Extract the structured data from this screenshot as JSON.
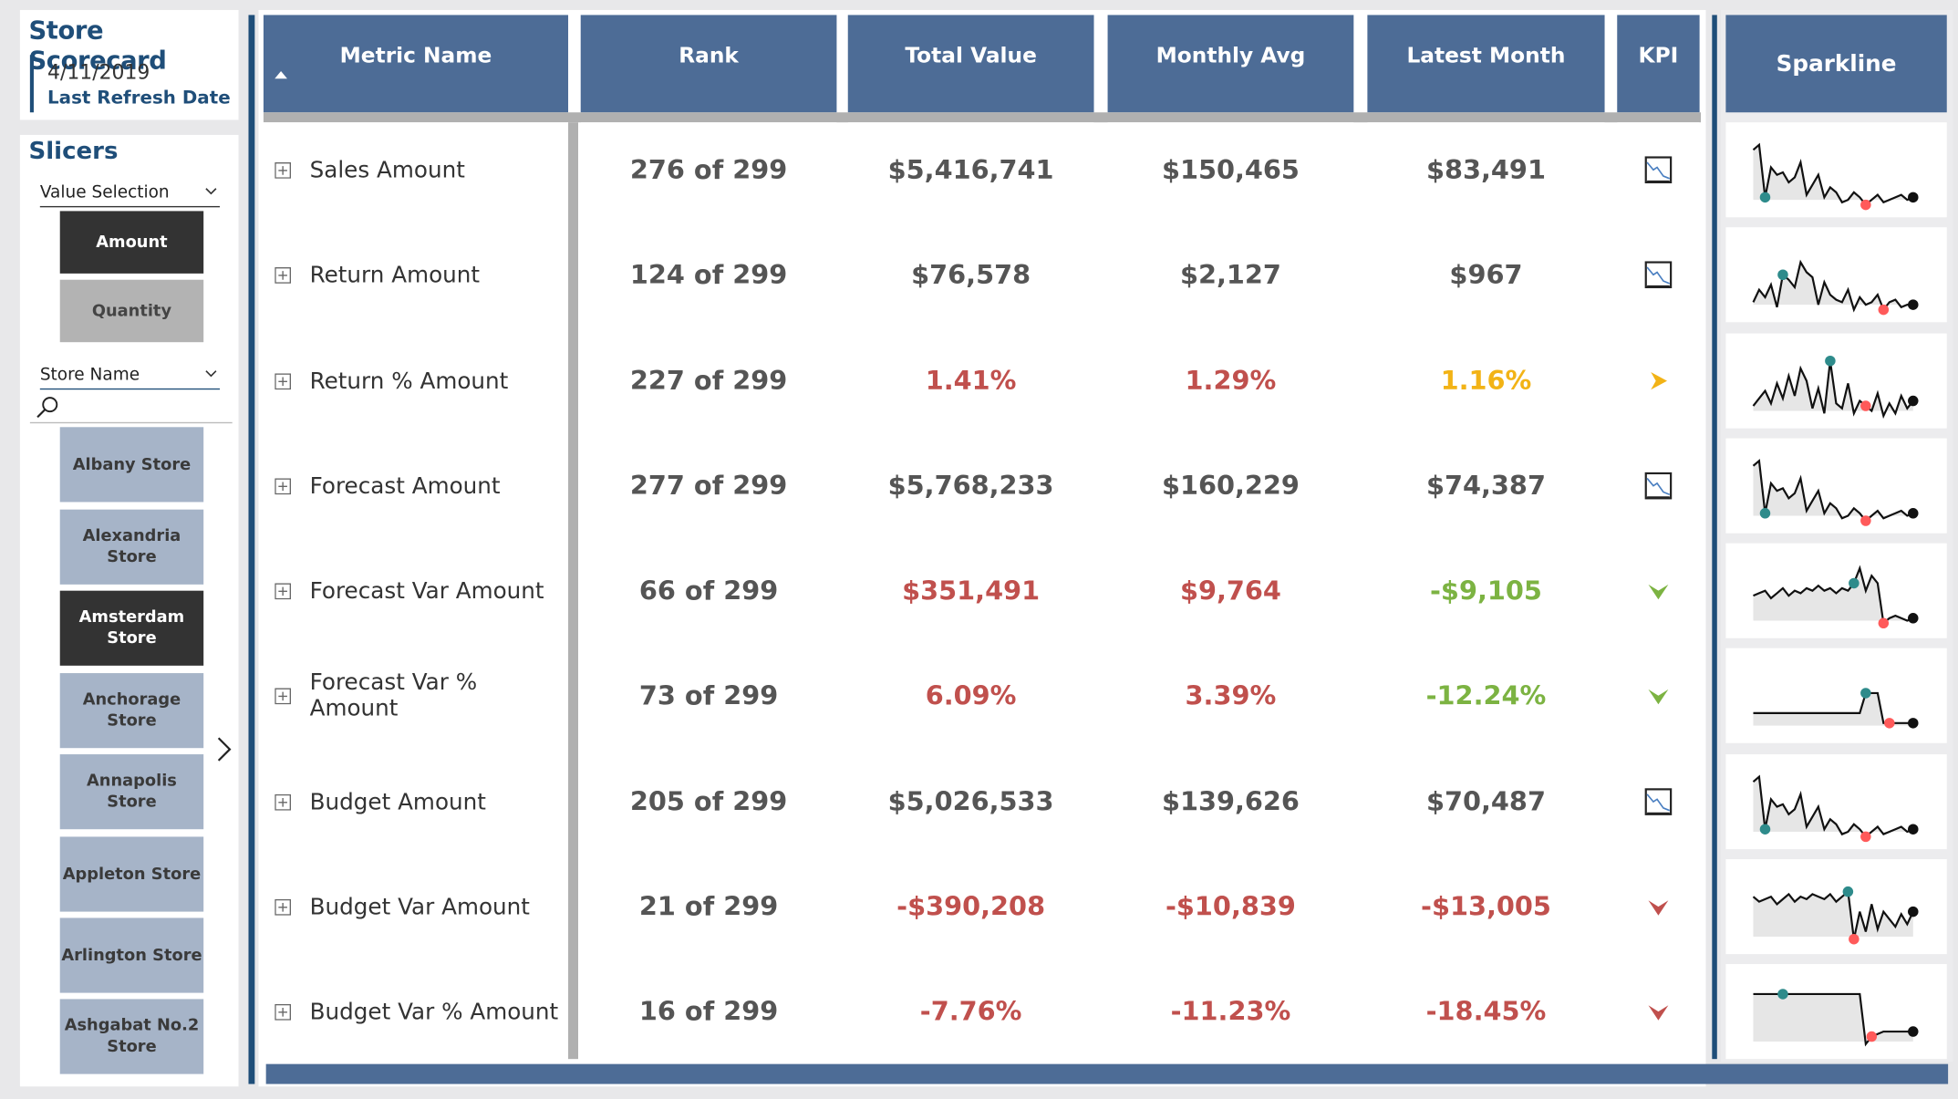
{
  "header": {
    "title": "Store Scorecard",
    "refresh_date": "4/11/2019",
    "refresh_label": "Last Refresh Date"
  },
  "slicers": {
    "title": "Slicers",
    "value_selection": {
      "label": "Value Selection",
      "options": [
        "Amount",
        "Quantity"
      ],
      "selected": "Amount"
    },
    "store_name": {
      "label": "Store Name",
      "stores": [
        "Albany Store",
        "Alexandria Store",
        "Amsterdam Store",
        "Anchorage Store",
        "Annapolis Store",
        "Appleton Store",
        "Arlington Store",
        "Ashgabat No.2 Store"
      ],
      "selected": "Amsterdam Store"
    }
  },
  "table": {
    "columns": [
      "Metric Name",
      "Rank",
      "Total Value",
      "Monthly Avg",
      "Latest Month",
      "KPI",
      "Sparkline"
    ],
    "sort_column": "Metric Name",
    "rows": [
      {
        "metric": "Sales Amount",
        "rank": "276 of 299",
        "total": "$5,416,741",
        "avg": "$150,465",
        "latest": "$83,491",
        "kpi": "blank-chart-icon",
        "total_color": "#555555",
        "avg_color": "#555555",
        "latest_color": "#555555"
      },
      {
        "metric": "Return Amount",
        "rank": "124 of 299",
        "total": "$76,578",
        "avg": "$2,127",
        "latest": "$967",
        "kpi": "blank-chart-icon",
        "total_color": "#555555",
        "avg_color": "#555555",
        "latest_color": "#555555"
      },
      {
        "metric": "Return % Amount",
        "rank": "227 of 299",
        "total": "1.41%",
        "avg": "1.29%",
        "latest": "1.16%",
        "kpi": "arrow-right-icon",
        "total_color": "#c0504d",
        "avg_color": "#c0504d",
        "latest_color": "#f2b316"
      },
      {
        "metric": "Forecast Amount",
        "rank": "277 of 299",
        "total": "$5,768,233",
        "avg": "$160,229",
        "latest": "$74,387",
        "kpi": "blank-chart-icon",
        "total_color": "#555555",
        "avg_color": "#555555",
        "latest_color": "#555555"
      },
      {
        "metric": "Forecast Var Amount",
        "rank": "66 of 299",
        "total": "$351,491",
        "avg": "$9,764",
        "latest": "-$9,105",
        "kpi": "chevron-down-green-icon",
        "total_color": "#c0504d",
        "avg_color": "#c0504d",
        "latest_color": "#7cb342"
      },
      {
        "metric": "Forecast Var % Amount",
        "rank": "73 of 299",
        "total": "6.09%",
        "avg": "3.39%",
        "latest": "-12.24%",
        "kpi": "chevron-down-green-icon",
        "total_color": "#c0504d",
        "avg_color": "#c0504d",
        "latest_color": "#7cb342"
      },
      {
        "metric": "Budget Amount",
        "rank": "205 of 299",
        "total": "$5,026,533",
        "avg": "$139,626",
        "latest": "$70,487",
        "kpi": "blank-chart-icon",
        "total_color": "#555555",
        "avg_color": "#555555",
        "latest_color": "#555555"
      },
      {
        "metric": "Budget Var Amount",
        "rank": "21 of 299",
        "total": "-$390,208",
        "avg": "-$10,839",
        "latest": "-$13,005",
        "kpi": "chevron-down-red-icon",
        "total_color": "#c0504d",
        "avg_color": "#c0504d",
        "latest_color": "#c0504d"
      },
      {
        "metric": "Budget Var % Amount",
        "rank": "16 of 299",
        "total": "-7.76%",
        "avg": "-11.23%",
        "latest": "-18.45%",
        "kpi": "chevron-down-red-icon",
        "total_color": "#c0504d",
        "avg_color": "#c0504d",
        "latest_color": "#c0504d"
      }
    ]
  },
  "colors": {
    "brand": "#1f4e79",
    "header": "#4d6c96",
    "negative": "#c0504d",
    "positive": "#7cb342",
    "neutral_warning": "#f2b316",
    "spark_max": "#2e8b8b",
    "spark_min": "#ff5a5a"
  }
}
